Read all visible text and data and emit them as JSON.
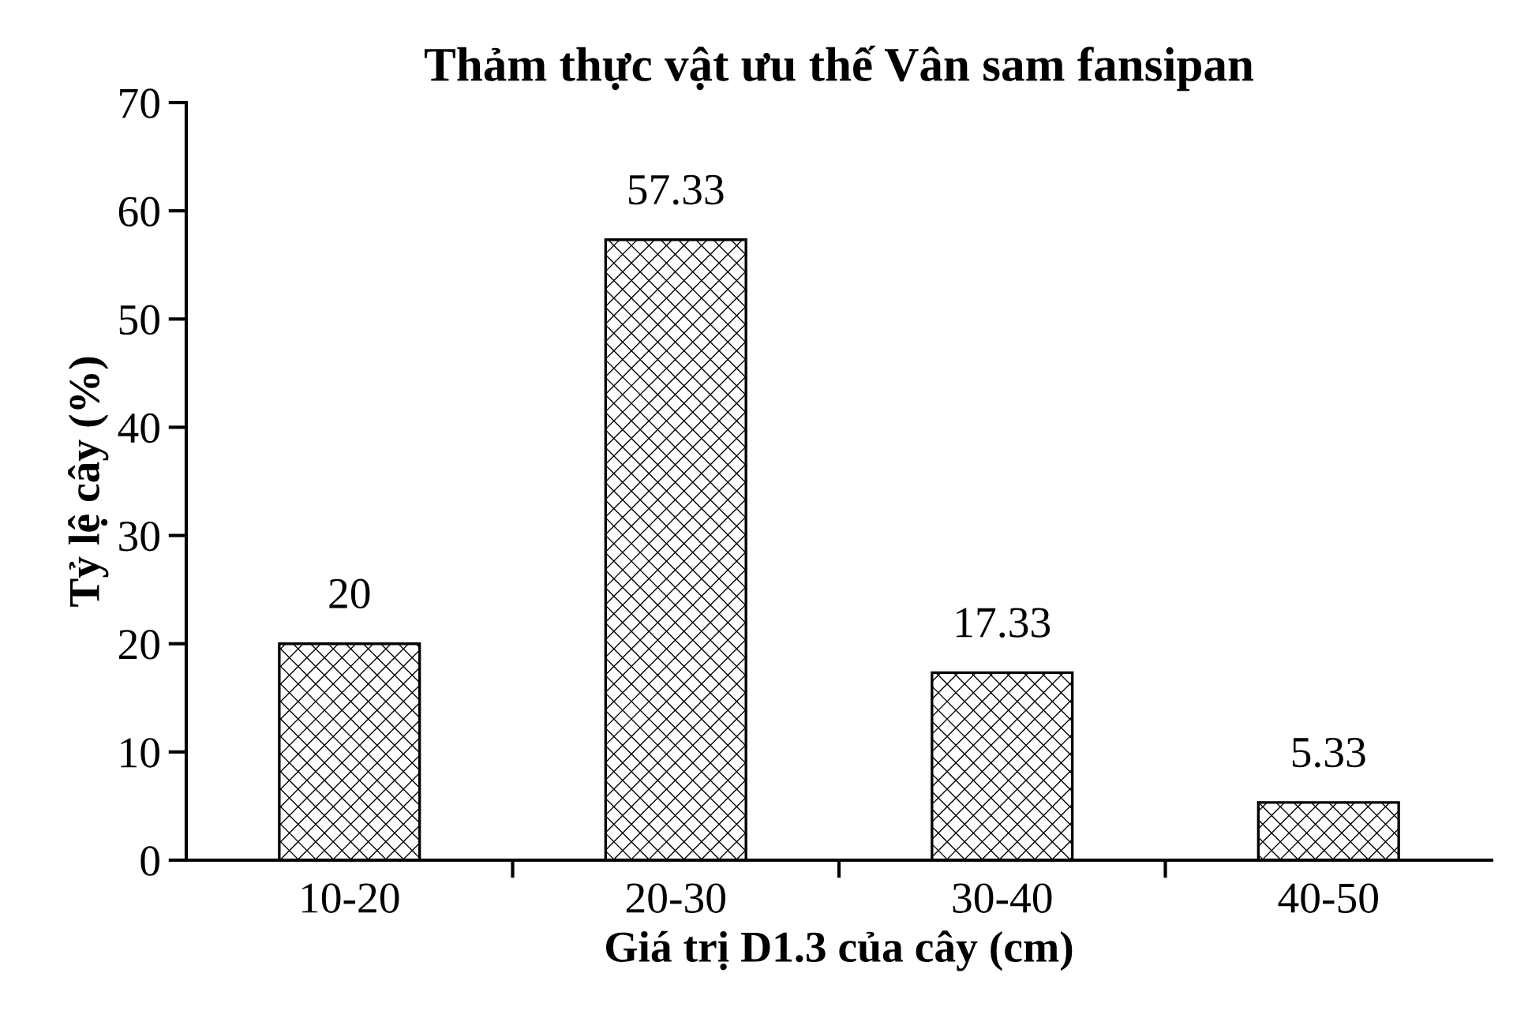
{
  "chart_data": {
    "type": "bar",
    "title": "Thảm thực vật ưu thế Vân sam fansipan",
    "xlabel": "Giá trị D1.3 của cây (cm)",
    "ylabel": "Tỷ lệ cây (%)",
    "categories": [
      "10-20",
      "20-30",
      "30-40",
      "40-50"
    ],
    "values": [
      20,
      57.33,
      17.33,
      5.33
    ],
    "color": "#000000",
    "ylim": [
      0,
      70
    ],
    "yticks": [
      0,
      10,
      20,
      30,
      40,
      50,
      60,
      70
    ],
    "grid": false,
    "data_labels": true
  }
}
